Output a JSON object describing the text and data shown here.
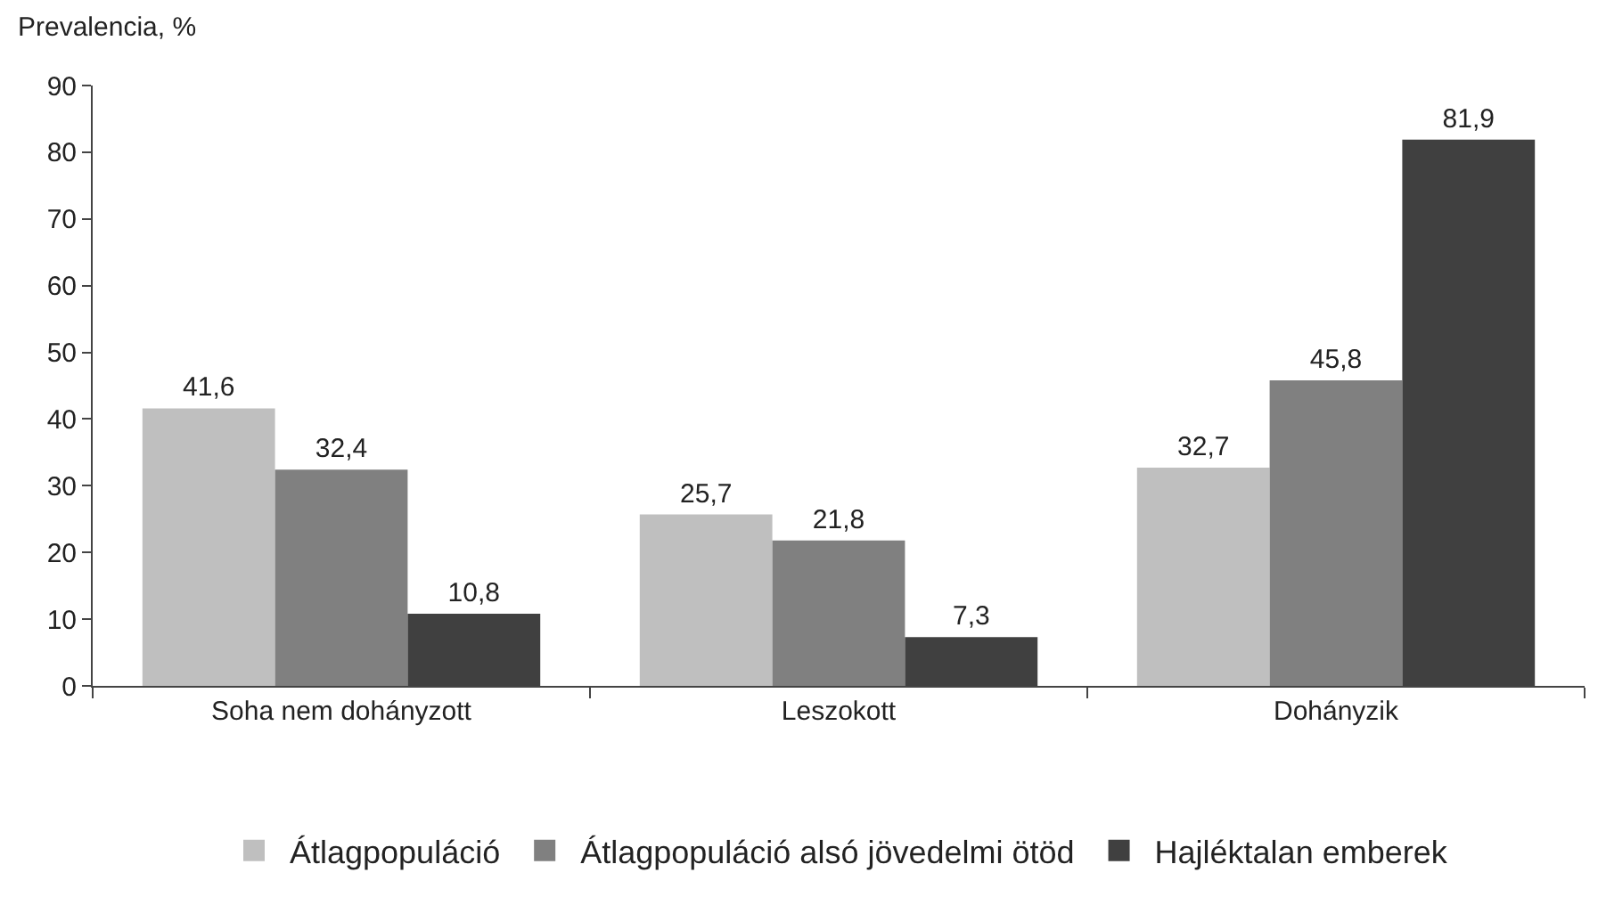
{
  "chart_data": {
    "type": "bar",
    "ylabel": "Prevalencia, %",
    "categories": [
      "Soha nem dohányzott",
      "Leszokott",
      "Dohányzik"
    ],
    "series": [
      {
        "name": "Átlagpopuláció",
        "color": "#bfbfbf",
        "values": [
          41.6,
          25.7,
          32.7
        ],
        "value_labels": [
          "41,6",
          "25,7",
          "32,7"
        ]
      },
      {
        "name": "Átlagpopuláció alsó jövedelmi ötöd",
        "color": "#808080",
        "values": [
          32.4,
          21.8,
          45.8
        ],
        "value_labels": [
          "32,4",
          "21,8",
          "45,8"
        ]
      },
      {
        "name": "Hajléktalan emberek",
        "color": "#404040",
        "values": [
          10.8,
          7.3,
          81.9
        ],
        "value_labels": [
          "10,8",
          "7,3",
          "81,9"
        ]
      }
    ],
    "ylim": [
      0,
      90
    ],
    "yticks": [
      0,
      10,
      20,
      30,
      40,
      50,
      60,
      70,
      80,
      90
    ],
    "grid": false,
    "legend": "bottom"
  }
}
